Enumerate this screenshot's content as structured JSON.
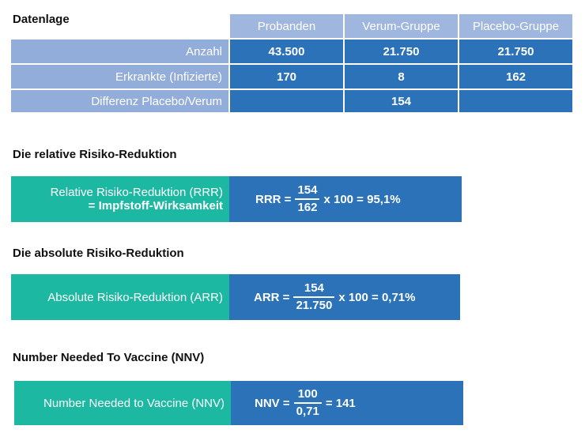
{
  "datenlage": {
    "title": "Datenlage",
    "headers": [
      "Probanden",
      "Verum-Gruppe",
      "Placebo-Gruppe"
    ],
    "rows": [
      {
        "label": "Anzahl",
        "values": [
          "43.500",
          "21.750",
          "21.750"
        ]
      },
      {
        "label": "Erkrankte (Infizierte)",
        "values": [
          "170",
          "8",
          "162"
        ]
      },
      {
        "label": "Differenz Placebo/Verum",
        "values": [
          "",
          "154",
          ""
        ]
      }
    ]
  },
  "rrr": {
    "heading": "Die relative Risiko-Reduktion",
    "label_line1": "Relative Risiko-Reduktion (RRR)",
    "label_line2": "= Impfstoff-Wirksamkeit",
    "prefix": "RRR =",
    "numerator": "154",
    "denominator": "162",
    "suffix": "x 100 = 95,1%"
  },
  "arr": {
    "heading": "Die absolute Risiko-Reduktion",
    "label": "Absolute Risiko-Reduktion (ARR)",
    "prefix": "ARR =",
    "numerator": "154",
    "denominator": "21.750",
    "suffix": "x 100 = 0,71%"
  },
  "nnv": {
    "heading": "Number Needed To Vaccine (NNV)",
    "label": "Number Needed to Vaccine (NNV)",
    "prefix": "NNV =",
    "numerator": "100",
    "denominator": "0,71",
    "suffix": "= 141"
  },
  "colors": {
    "header": "#9fb6df",
    "label": "#93addb",
    "value": "#2b72b9",
    "teal": "#1db8a1"
  }
}
